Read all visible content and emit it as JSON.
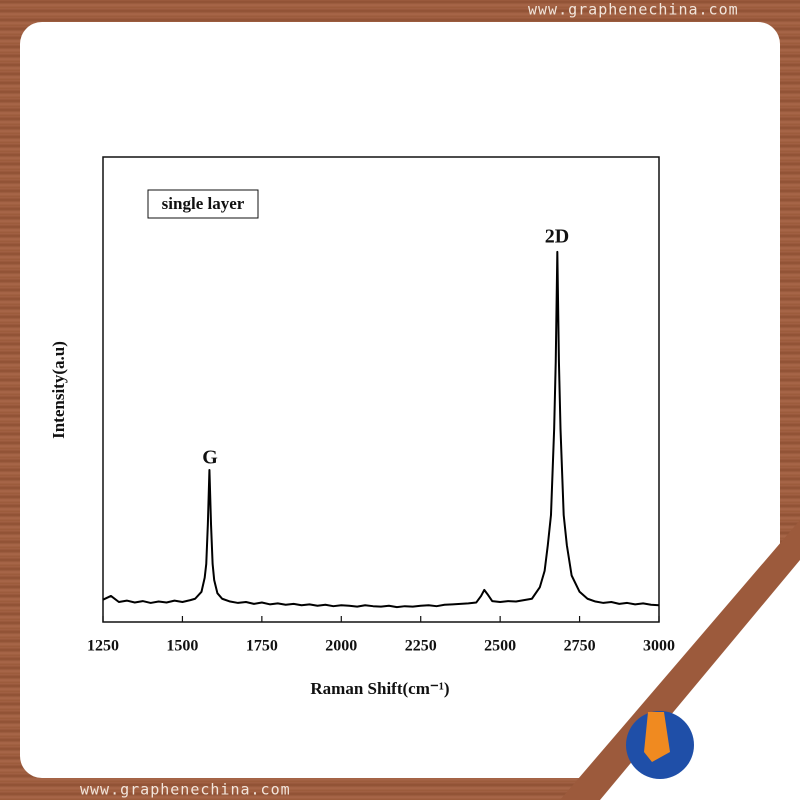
{
  "watermarks": [
    "www.graphenechina.com",
    "www.graphenechina.com"
  ],
  "chart_data": {
    "type": "line",
    "x_label": "Raman Shift(cm⁻¹)",
    "y_label": "Intensity(a.u)",
    "annotations": [
      "single layer",
      "G",
      "2D"
    ],
    "x": [
      1250,
      1275,
      1300,
      1325,
      1350,
      1375,
      1400,
      1425,
      1450,
      1475,
      1500,
      1525,
      1540,
      1560,
      1570,
      1575,
      1580,
      1585,
      1590,
      1595,
      1600,
      1610,
      1625,
      1650,
      1675,
      1700,
      1725,
      1750,
      1775,
      1800,
      1825,
      1850,
      1875,
      1900,
      1925,
      1950,
      1975,
      2000,
      2025,
      2050,
      2075,
      2100,
      2125,
      2150,
      2175,
      2200,
      2225,
      2250,
      2275,
      2300,
      2325,
      2350,
      2375,
      2400,
      2425,
      2440,
      2450,
      2460,
      2475,
      2500,
      2525,
      2550,
      2575,
      2600,
      2625,
      2640,
      2650,
      2660,
      2670,
      2675,
      2680,
      2685,
      2690,
      2700,
      2710,
      2725,
      2750,
      2775,
      2800,
      2825,
      2850,
      2875,
      2900,
      2925,
      2950,
      2975,
      3000
    ],
    "series": [
      {
        "color": "#000000",
        "values": [
          4.8,
          5.6,
          4.3,
          4.6,
          4.2,
          4.5,
          4.1,
          4.4,
          4.2,
          4.6,
          4.3,
          4.7,
          5.0,
          6.5,
          9.5,
          12.5,
          21,
          32.7,
          21,
          12.5,
          9,
          6.2,
          5.0,
          4.4,
          4.1,
          4.3,
          3.9,
          4.2,
          3.8,
          4.0,
          3.7,
          3.9,
          3.6,
          3.8,
          3.5,
          3.7,
          3.4,
          3.6,
          3.5,
          3.3,
          3.6,
          3.4,
          3.3,
          3.5,
          3.2,
          3.4,
          3.3,
          3.5,
          3.6,
          3.4,
          3.7,
          3.8,
          3.9,
          4.0,
          4.2,
          5.6,
          6.9,
          6.0,
          4.5,
          4.3,
          4.5,
          4.4,
          4.7,
          5.0,
          7.5,
          11,
          16.5,
          23,
          41.5,
          56,
          79.6,
          56,
          41.5,
          23,
          16.5,
          10,
          6.5,
          5.0,
          4.4,
          4.1,
          4.3,
          3.9,
          4.1,
          3.8,
          4.0,
          3.7,
          3.6
        ]
      }
    ],
    "xlim": [
      1250,
      3000
    ],
    "xticks": [
      1250,
      1500,
      1750,
      2000,
      2250,
      2500,
      2750,
      3000
    ],
    "ylim": [
      0,
      100
    ]
  }
}
